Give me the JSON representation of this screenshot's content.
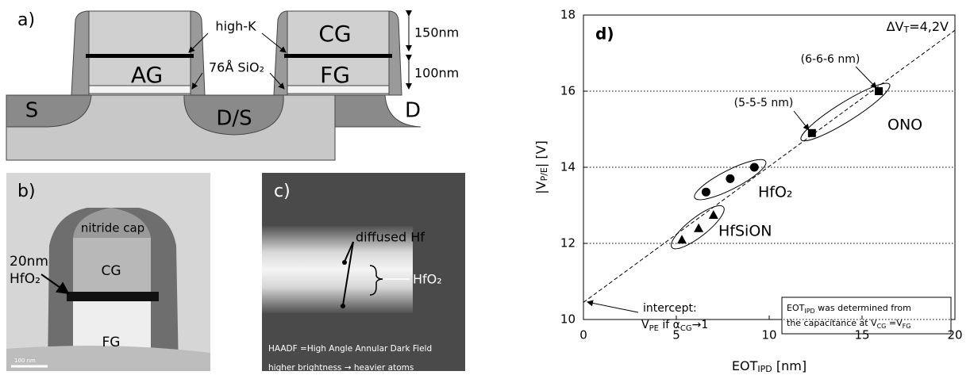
{
  "panel_a": {
    "label": "a)",
    "high_k": "high-K",
    "cg": "CG",
    "ag": "AG",
    "fg": "FG",
    "oxide": "76Å SiO₂",
    "dim_top": "150nm",
    "dim_bottom": "100nm",
    "source": "S",
    "drain_source": "D/S",
    "drain": "D"
  },
  "panel_b": {
    "label": "b)",
    "cap": "nitride cap",
    "cg": "CG",
    "thickness": "20nm",
    "material": "HfO₂",
    "fg": "FG",
    "scale": "100 nm"
  },
  "panel_c": {
    "label": "c)",
    "diffused": "diffused Hf",
    "layer": "HfO₂",
    "method": "HAADF =High Angle Annular Dark Field",
    "note": "higher brightness → heavier atoms"
  },
  "chart_data": {
    "type": "scatter",
    "label": "d)",
    "xlabel": {
      "main": "EOT",
      "sub": "IPD",
      "unit": " [nm]"
    },
    "ylabel": {
      "main": "|V",
      "sub": "P/E",
      "unit": "| [V]"
    },
    "xlim": [
      0,
      20
    ],
    "xticks": [
      0,
      5,
      10,
      15,
      20
    ],
    "ylim": [
      10,
      18
    ],
    "yticks": [
      10,
      12,
      14,
      16,
      18
    ],
    "grid": true,
    "series": [
      {
        "name": "ONO",
        "marker": "square",
        "color": "#000000",
        "x": [
          12.3,
          15.9
        ],
        "values": [
          14.9,
          16.0
        ]
      },
      {
        "name": "HfO₂",
        "marker": "circle",
        "color": "#000000",
        "x": [
          6.6,
          7.9,
          9.2
        ],
        "values": [
          13.35,
          13.7,
          14.0
        ]
      },
      {
        "name": "HfSiON",
        "marker": "triangle",
        "color": "#000000",
        "x": [
          5.3,
          6.2,
          7.0
        ],
        "values": [
          12.1,
          12.4,
          12.75
        ]
      }
    ],
    "fit_line": {
      "x": [
        0,
        20
      ],
      "values": [
        10.45,
        17.6
      ]
    },
    "delta": {
      "main": "ΔV",
      "sub": "T",
      "rest": "=4,2V"
    },
    "ann_ono6": "(6-6-6 nm)",
    "ann_ono5": "(5-5-5 nm)",
    "intercept": {
      "line1": "intercept:",
      "v": "V",
      "vsub": "PE",
      "mid": " if α",
      "asub": "CG",
      "end": "→1"
    },
    "box": {
      "e": "EOT",
      "esub": "IPD",
      "l1": " was determined from",
      "l2": "the capacitance at V",
      "cg": "CG",
      "eq": " =V",
      "fg": "FG"
    }
  }
}
